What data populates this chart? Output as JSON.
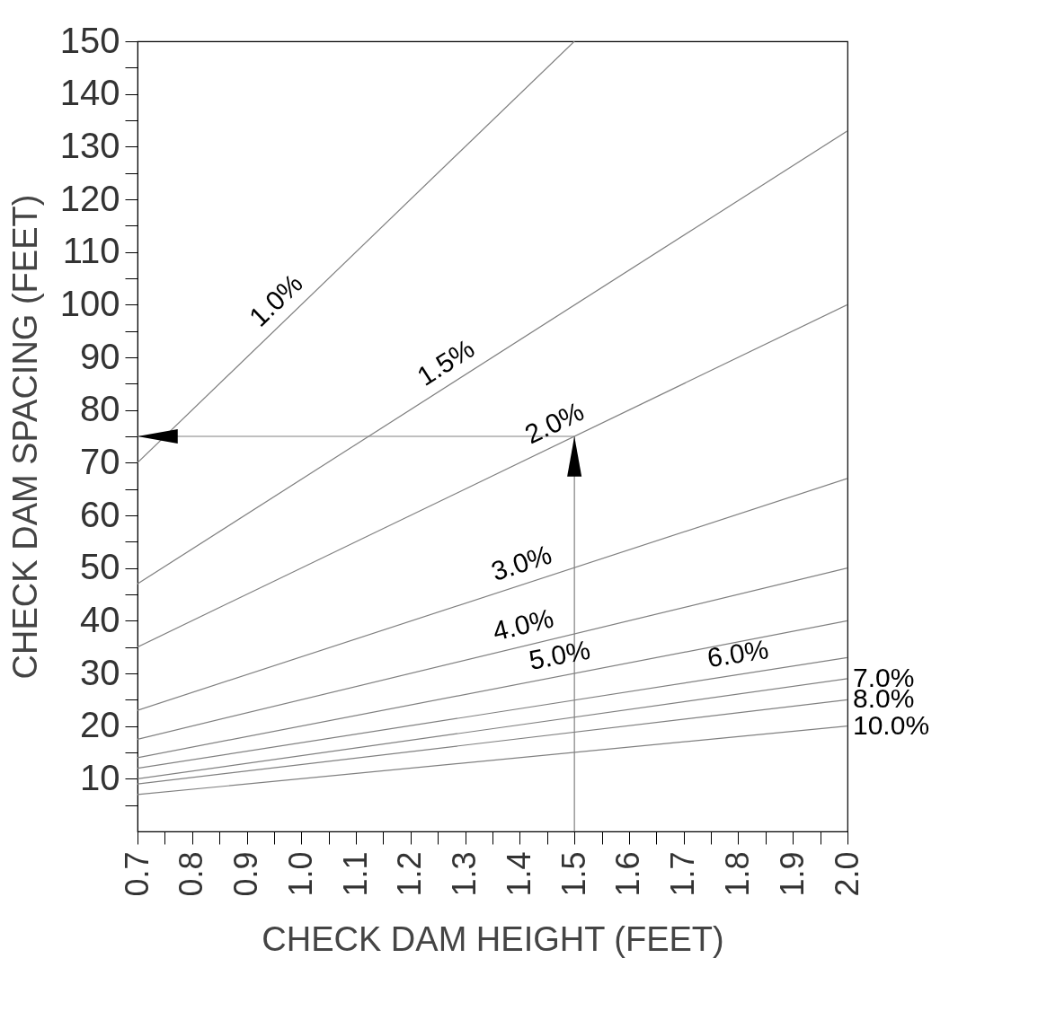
{
  "chart_data": {
    "type": "line",
    "xlabel": "CHECK DAM HEIGHT (FEET)",
    "ylabel": "CHECK DAM SPACING (FEET)",
    "xlim": [
      0.7,
      2.0
    ],
    "ylim": [
      0,
      150
    ],
    "xticks": [
      0.7,
      {
        "value": 0.75,
        "label": null
      },
      0.8,
      {
        "value": 0.85,
        "label": null
      },
      0.9,
      {
        "value": 0.95,
        "label": null
      },
      {
        "value": 1.0,
        "label": "1.0"
      },
      {
        "value": 1.05,
        "label": null
      },
      1.1,
      {
        "value": 1.15,
        "label": null
      },
      1.2,
      {
        "value": 1.25,
        "label": null
      },
      1.3,
      {
        "value": 1.35,
        "label": null
      },
      1.4,
      {
        "value": 1.45,
        "label": null
      },
      1.5,
      {
        "value": 1.55,
        "label": null
      },
      1.6,
      {
        "value": 1.65,
        "label": null
      },
      1.7,
      {
        "value": 1.75,
        "label": null
      },
      1.8,
      {
        "value": 1.85,
        "label": null
      },
      1.9,
      {
        "value": 1.95,
        "label": null
      },
      {
        "value": 2.0,
        "label": "2.0"
      }
    ],
    "yticks": [
      {
        "value": 5,
        "label": null
      },
      10,
      {
        "value": 15,
        "label": null
      },
      20,
      {
        "value": 25,
        "label": null
      },
      30,
      {
        "value": 35,
        "label": null
      },
      40,
      {
        "value": 45,
        "label": null
      },
      50,
      {
        "value": 55,
        "label": null
      },
      60,
      {
        "value": 65,
        "label": null
      },
      70,
      {
        "value": 75,
        "label": null
      },
      80,
      {
        "value": 85,
        "label": null
      },
      90,
      {
        "value": 95,
        "label": null
      },
      100,
      {
        "value": 105,
        "label": null
      },
      110,
      {
        "value": 115,
        "label": null
      },
      120,
      {
        "value": 125,
        "label": null
      },
      130,
      {
        "value": 135,
        "label": null
      },
      140,
      {
        "value": 145,
        "label": null
      },
      150
    ],
    "series": [
      {
        "name": "1.0%",
        "color": "#808080",
        "x": [
          0.7,
          1.5
        ],
        "values": [
          70,
          150
        ]
      },
      {
        "name": "1.5%",
        "color": "#808080",
        "x": [
          0.7,
          2.0
        ],
        "values": [
          47,
          133
        ]
      },
      {
        "name": "2.0%",
        "color": "#808080",
        "x": [
          0.7,
          2.0
        ],
        "values": [
          35,
          100
        ]
      },
      {
        "name": "3.0%",
        "color": "#808080",
        "x": [
          0.7,
          2.0
        ],
        "values": [
          23,
          67
        ]
      },
      {
        "name": "4.0%",
        "color": "#808080",
        "x": [
          0.7,
          2.0
        ],
        "values": [
          17.5,
          50
        ]
      },
      {
        "name": "5.0%",
        "color": "#808080",
        "x": [
          0.7,
          2.0
        ],
        "values": [
          14,
          40
        ]
      },
      {
        "name": "6.0%",
        "color": "#808080",
        "x": [
          0.7,
          2.0
        ],
        "values": [
          12,
          33
        ]
      },
      {
        "name": "7.0%",
        "color": "#808080",
        "x": [
          0.7,
          2.0
        ],
        "values": [
          10,
          29
        ]
      },
      {
        "name": "8.0%",
        "color": "#808080",
        "x": [
          0.7,
          2.0
        ],
        "values": [
          9,
          25
        ]
      },
      {
        "name": "10.0%",
        "color": "#808080",
        "x": [
          0.7,
          2.0
        ],
        "values": [
          7,
          20
        ]
      },
      {
        "color": "#808080",
        "x": [
          1.5,
          1.5
        ],
        "values": [
          0,
          75
        ]
      },
      {
        "color": "#808080",
        "x": [
          1.5,
          0.7
        ],
        "values": [
          75,
          75
        ]
      }
    ]
  }
}
